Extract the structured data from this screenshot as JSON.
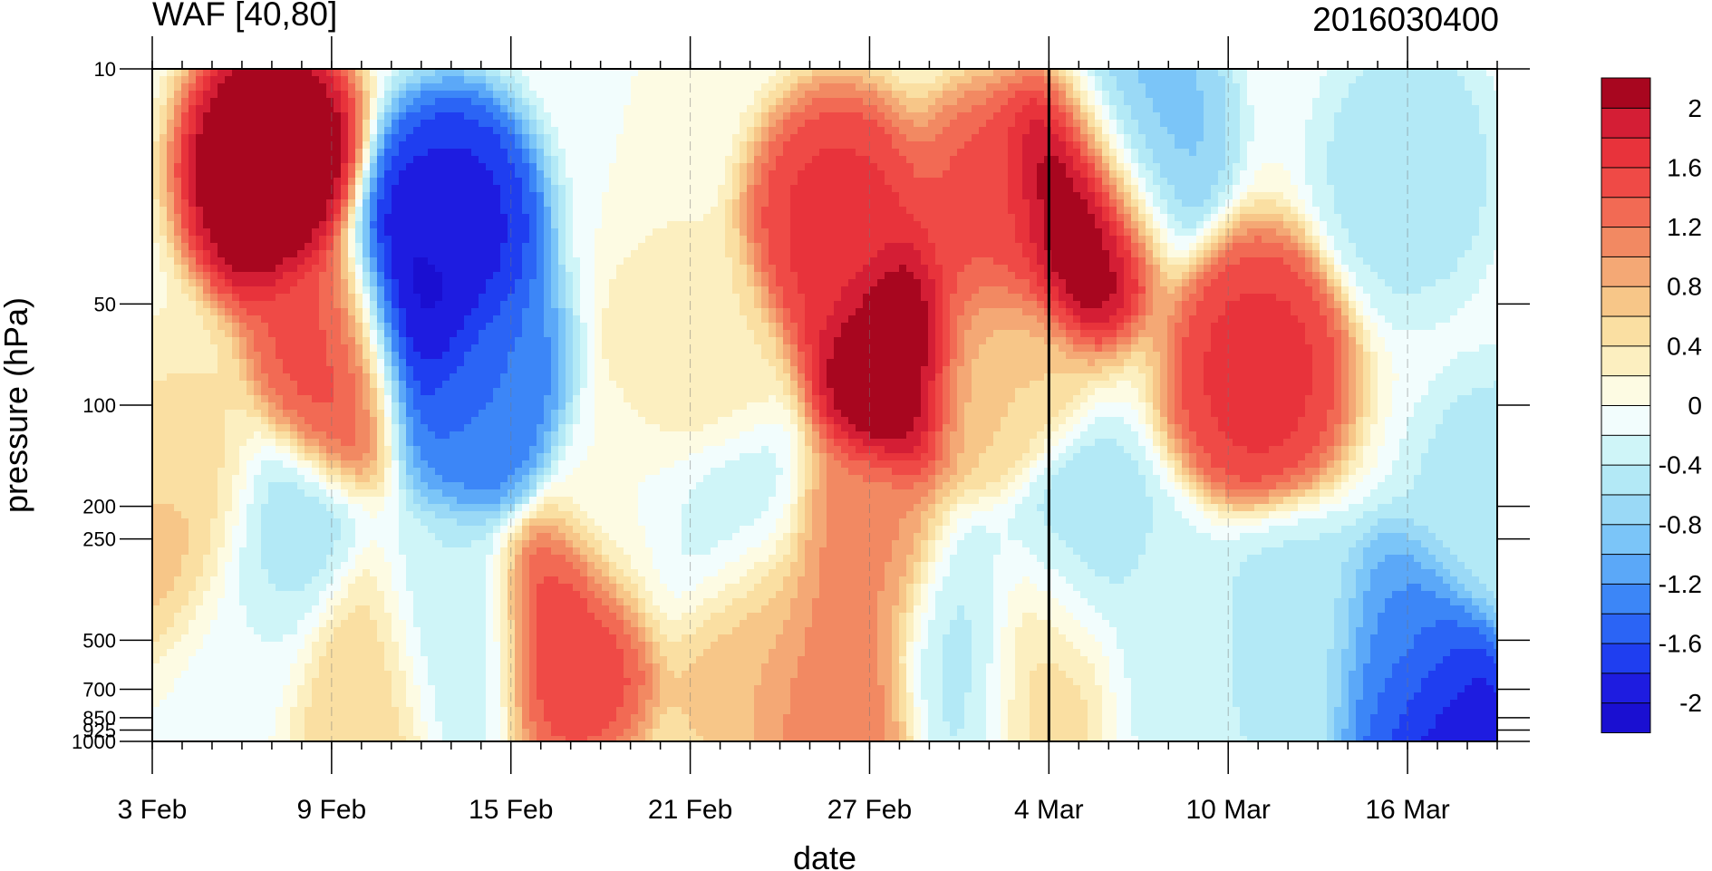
{
  "chart_data": {
    "type": "heatmap",
    "title": "WAF [40,80]",
    "right_title": "2016030400",
    "xlabel": "date",
    "ylabel": "pressure (hPa)",
    "y_scale": "log",
    "y_reversed": true,
    "xlim": [
      "2016-02-03",
      "2016-03-19"
    ],
    "ylim": [
      1000,
      10
    ],
    "x_ticks": [
      {
        "date": "2016-02-03",
        "label": "3 Feb"
      },
      {
        "date": "2016-02-09",
        "label": "9 Feb"
      },
      {
        "date": "2016-02-15",
        "label": "15 Feb"
      },
      {
        "date": "2016-02-21",
        "label": "21 Feb"
      },
      {
        "date": "2016-02-27",
        "label": "27 Feb"
      },
      {
        "date": "2016-03-04",
        "label": "4 Mar"
      },
      {
        "date": "2016-03-10",
        "label": "10 Mar"
      },
      {
        "date": "2016-03-16",
        "label": "16 Mar"
      }
    ],
    "y_ticks": [
      {
        "value": 10,
        "label": "10"
      },
      {
        "value": 50,
        "label": "50"
      },
      {
        "value": 100,
        "label": "100"
      },
      {
        "value": 200,
        "label": "200"
      },
      {
        "value": 250,
        "label": "250"
      },
      {
        "value": 500,
        "label": "500"
      },
      {
        "value": 700,
        "label": "700"
      },
      {
        "value": 850,
        "label": "850"
      },
      {
        "value": 925,
        "label": "925"
      },
      {
        "value": 1000,
        "label": "1000"
      }
    ],
    "reference_line_date": "2016-03-04",
    "colorbar": {
      "levels": [
        -2.2,
        -2,
        -1.8,
        -1.6,
        -1.4,
        -1.2,
        -1,
        -0.8,
        -0.6,
        -0.4,
        -0.2,
        0,
        0.2,
        0.4,
        0.6,
        0.8,
        1,
        1.2,
        1.4,
        1.6,
        1.8,
        2,
        2.2
      ],
      "colors": [
        "#1a0fd1",
        "#1e1ce0",
        "#1f3ef0",
        "#2b64f5",
        "#3c86f7",
        "#5ba8f8",
        "#7bc5f8",
        "#9ad9f6",
        "#b3e9f6",
        "#cff5f8",
        "#f2fdfd",
        "#fdfbe3",
        "#fcefc0",
        "#fadfa2",
        "#f7c688",
        "#f4a875",
        "#f28962",
        "#f26a54",
        "#ef4a46",
        "#e8333b",
        "#d41e35",
        "#a8061f"
      ],
      "labels": [
        {
          "value": 2,
          "label": "2"
        },
        {
          "value": 1.6,
          "label": "1.6"
        },
        {
          "value": 1.2,
          "label": "1.2"
        },
        {
          "value": 0.8,
          "label": "0.8"
        },
        {
          "value": 0.4,
          "label": "0.4"
        },
        {
          "value": 0,
          "label": "0"
        },
        {
          "value": -0.4,
          "label": "-0.4"
        },
        {
          "value": -0.8,
          "label": "-0.8"
        },
        {
          "value": -1.2,
          "label": "-1.2"
        },
        {
          "value": -1.6,
          "label": "-1.6"
        },
        {
          "value": -2,
          "label": "-2"
        }
      ]
    },
    "features": [
      {
        "date": "2016-02-07",
        "p": 20,
        "value": 2.4
      },
      {
        "date": "2016-02-09",
        "p": 70,
        "value": 1.5
      },
      {
        "date": "2016-02-04",
        "p": 150,
        "value": 0.4
      },
      {
        "date": "2016-02-04",
        "p": 230,
        "value": 0.8
      },
      {
        "date": "2016-02-13",
        "p": 30,
        "value": -1.9
      },
      {
        "date": "2016-02-12",
        "p": 50,
        "value": -2.2
      },
      {
        "date": "2016-02-14",
        "p": 90,
        "value": -1.4
      },
      {
        "date": "2016-02-06",
        "p": 500,
        "value": -0.1
      },
      {
        "date": "2016-02-07",
        "p": 270,
        "value": -0.6
      },
      {
        "date": "2016-02-13",
        "p": 500,
        "value": -0.4
      },
      {
        "date": "2016-02-17",
        "p": 480,
        "value": 1.6
      },
      {
        "date": "2016-02-10",
        "p": 700,
        "value": 0.6
      },
      {
        "date": "2016-02-23",
        "p": 480,
        "value": 0.8
      },
      {
        "date": "2016-02-22",
        "p": 230,
        "value": -0.4
      },
      {
        "date": "2016-02-28",
        "p": 70,
        "value": 2.4
      },
      {
        "date": "2016-02-26",
        "p": 30,
        "value": 1.7
      },
      {
        "date": "2016-03-02",
        "p": 30,
        "value": 1.5
      },
      {
        "date": "2016-02-27",
        "p": 300,
        "value": 1.1
      },
      {
        "date": "2016-02-26",
        "p": 700,
        "value": 1.2
      },
      {
        "date": "2016-03-01",
        "p": 500,
        "value": -0.5
      },
      {
        "date": "2016-03-05",
        "p": 25,
        "value": 2.4
      },
      {
        "date": "2016-03-02",
        "p": 80,
        "value": 0.6
      },
      {
        "date": "2016-03-05",
        "p": 300,
        "value": -0.6
      },
      {
        "date": "2016-03-04",
        "p": 520,
        "value": 0.6
      },
      {
        "date": "2016-03-07",
        "p": 15,
        "value": -0.9
      },
      {
        "date": "2016-03-08",
        "p": 500,
        "value": -0.3
      },
      {
        "date": "2016-03-11",
        "p": 80,
        "value": 1.7
      },
      {
        "date": "2016-03-16",
        "p": 20,
        "value": -0.5
      },
      {
        "date": "2016-03-17",
        "p": 850,
        "value": -2.1
      },
      {
        "date": "2016-03-16",
        "p": 600,
        "value": -1.2
      },
      {
        "date": "2016-03-12",
        "p": 500,
        "value": -0.5
      },
      {
        "date": "2016-02-19",
        "p": 200,
        "value": 0.0
      },
      {
        "date": "2016-02-21",
        "p": 80,
        "value": 0.4
      },
      {
        "date": "2016-03-19",
        "p": 200,
        "value": -0.5
      }
    ]
  }
}
